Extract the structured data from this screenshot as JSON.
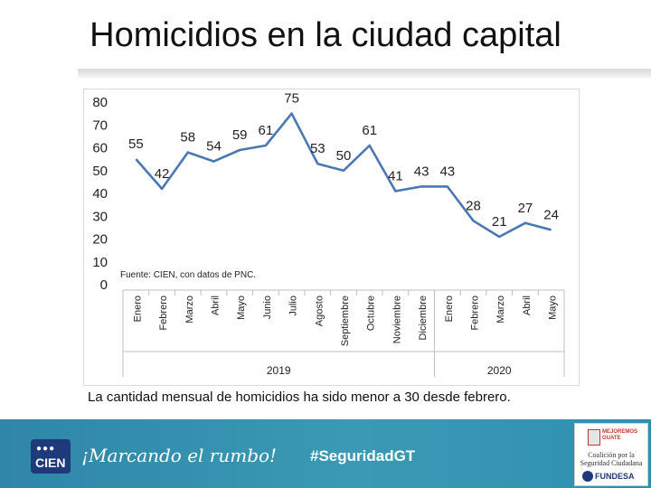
{
  "slide": {
    "title": "Homicidios en la ciudad capital",
    "caption": "La cantidad mensual de homicidios ha sido menor a 30 desde febrero."
  },
  "chart_data": {
    "type": "line",
    "title": "",
    "xlabel": "",
    "ylabel": "",
    "ylim": [
      0,
      80
    ],
    "yticks": [
      "0",
      "10",
      "20",
      "30",
      "40",
      "50",
      "60",
      "70",
      "80"
    ],
    "grid": false,
    "note": "Fuente: CIEN, con datos de PNC.",
    "line_color": "#4a78b5",
    "categories": [
      "Enero",
      "Febrero",
      "Marzo",
      "Abril",
      "Mayo",
      "Junio",
      "Julio",
      "Agosto",
      "Septiembre",
      "Octubre",
      "Noviembre",
      "Diciembre",
      "Enero",
      "Febrero",
      "Marzo",
      "Abril",
      "Mayo"
    ],
    "groups": [
      {
        "label": "2019",
        "count": 12
      },
      {
        "label": "2020",
        "count": 5
      }
    ],
    "series": [
      {
        "values": [
          55,
          42,
          58,
          54,
          59,
          61,
          75,
          53,
          50,
          61,
          41,
          43,
          43,
          28,
          21,
          27,
          24
        ]
      }
    ]
  },
  "footer": {
    "logo_text": "CIEN",
    "logo_dots": "●●●",
    "slogan": "¡Marcando el rumbo!",
    "hashtag": "#SeguridadGT",
    "partner_line1": "MEJOREMOS GUATE",
    "partner_line2": "Coalición por la Seguridad Ciudadana",
    "partner_line3": "FUNDESA"
  }
}
